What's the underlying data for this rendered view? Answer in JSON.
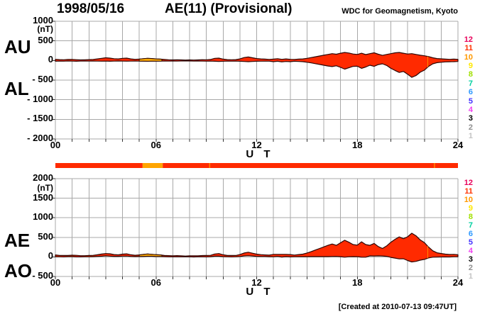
{
  "header": {
    "date": "1998/05/16",
    "title": "AE(11) (Provisional)",
    "credit": "WDC for Geomagnetism, Kyoto"
  },
  "footer": {
    "created": "[Created at 2010-07-13 09:47UT]"
  },
  "axis": {
    "unit_label": "(nT)",
    "ut_label": "U T",
    "x_tick_labels": [
      "00",
      "06",
      "12",
      "18",
      "24"
    ],
    "x_tick_hours": [
      0,
      6,
      12,
      18,
      24
    ]
  },
  "panels": {
    "top": {
      "left_labels": [
        "AU",
        "AL"
      ],
      "y_tick_labels": [
        "1000",
        "500",
        "0",
        "- 500",
        "- 1000",
        "- 1500",
        "- 2000"
      ],
      "y_tick_values": [
        1000,
        500,
        0,
        -500,
        -1000,
        -1500,
        -2000
      ]
    },
    "bottom": {
      "left_labels": [
        "AE",
        "AO"
      ],
      "y_tick_labels": [
        "2000",
        "1500",
        "1000",
        "500",
        "0",
        "- 500"
      ],
      "y_tick_values": [
        2000,
        1500,
        1000,
        500,
        0,
        -500
      ]
    }
  },
  "station_numbers": {
    "values": [
      "12",
      "11",
      "10",
      "9",
      "8",
      "7",
      "6",
      "5",
      "4",
      "3",
      "2",
      "1"
    ],
    "colors": [
      "#E8005A",
      "#FF3300",
      "#FF9900",
      "#FFE800",
      "#A0E000",
      "#00D0A0",
      "#2E9AFF",
      "#4433FF",
      "#F040F0",
      "#000000",
      "#909090",
      "#C4C4C4"
    ]
  },
  "chart_data": {
    "type": "area",
    "title": "AE(11) (Provisional)",
    "date": "1998/05/16",
    "xlabel": "U T",
    "unit": "nT",
    "x_start": 0,
    "x_end": 24,
    "x_step_hours": 0.25,
    "series": [
      {
        "name": "AU",
        "values": [
          30,
          22,
          18,
          25,
          28,
          20,
          15,
          18,
          22,
          28,
          40,
          55,
          70,
          60,
          45,
          40,
          55,
          60,
          40,
          30,
          35,
          45,
          55,
          50,
          40,
          35,
          25,
          18,
          15,
          18,
          15,
          12,
          15,
          12,
          15,
          20,
          18,
          25,
          55,
          60,
          35,
          22,
          18,
          22,
          40,
          75,
          90,
          70,
          50,
          40,
          35,
          28,
          35,
          45,
          30,
          40,
          30,
          28,
          35,
          40,
          55,
          75,
          95,
          115,
          135,
          155,
          175,
          160,
          185,
          205,
          190,
          165,
          155,
          185,
          150,
          175,
          195,
          160,
          130,
          155,
          175,
          195,
          205,
          185,
          165,
          175,
          155,
          135,
          120,
          100,
          70,
          50,
          42,
          35,
          30,
          35,
          30
        ]
      },
      {
        "name": "AL",
        "values": [
          -20,
          -15,
          -18,
          -12,
          -15,
          -20,
          -15,
          -12,
          -15,
          -12,
          -15,
          -18,
          -15,
          -20,
          -15,
          -12,
          -15,
          -18,
          -15,
          -12,
          -15,
          -18,
          -20,
          -15,
          -18,
          -15,
          -12,
          -15,
          -12,
          -15,
          -12,
          -10,
          -12,
          -15,
          -12,
          -15,
          -18,
          -15,
          -20,
          -25,
          -20,
          -15,
          -18,
          -15,
          -20,
          -25,
          -30,
          -25,
          -20,
          -18,
          -15,
          -18,
          -30,
          -20,
          -35,
          -25,
          -30,
          -20,
          -25,
          -30,
          -45,
          -60,
          -80,
          -100,
          -120,
          -140,
          -155,
          -135,
          -175,
          -220,
          -185,
          -150,
          -145,
          -200,
          -165,
          -120,
          -150,
          -105,
          -85,
          -125,
          -200,
          -255,
          -305,
          -280,
          -350,
          -430,
          -385,
          -300,
          -245,
          -150,
          -85,
          -55,
          -45,
          -35,
          -32,
          -30,
          -25
        ]
      },
      {
        "name": "AE",
        "values": [
          50,
          37,
          36,
          37,
          43,
          40,
          30,
          30,
          37,
          40,
          55,
          73,
          85,
          80,
          60,
          52,
          70,
          78,
          55,
          42,
          50,
          63,
          75,
          65,
          58,
          50,
          37,
          33,
          27,
          33,
          27,
          22,
          27,
          27,
          27,
          35,
          36,
          40,
          75,
          85,
          55,
          37,
          36,
          37,
          60,
          100,
          120,
          95,
          70,
          58,
          50,
          46,
          65,
          65,
          65,
          65,
          60,
          48,
          60,
          70,
          100,
          135,
          175,
          215,
          255,
          295,
          330,
          295,
          360,
          425,
          375,
          315,
          300,
          385,
          315,
          295,
          345,
          265,
          215,
          280,
          375,
          450,
          510,
          465,
          515,
          605,
          540,
          435,
          365,
          250,
          155,
          105,
          87,
          70,
          62,
          65,
          55
        ]
      },
      {
        "name": "AO",
        "values": [
          5,
          4,
          0,
          7,
          7,
          0,
          0,
          3,
          4,
          8,
          13,
          19,
          28,
          20,
          15,
          14,
          20,
          21,
          13,
          9,
          10,
          14,
          18,
          18,
          11,
          10,
          7,
          2,
          2,
          2,
          2,
          1,
          2,
          -2,
          2,
          3,
          0,
          5,
          18,
          18,
          8,
          4,
          0,
          4,
          10,
          25,
          30,
          23,
          15,
          11,
          10,
          5,
          3,
          13,
          -3,
          8,
          0,
          4,
          5,
          5,
          5,
          8,
          8,
          8,
          8,
          8,
          10,
          13,
          5,
          -8,
          3,
          8,
          5,
          -8,
          -8,
          28,
          23,
          28,
          23,
          15,
          -13,
          -30,
          -50,
          -48,
          -93,
          -128,
          -115,
          -83,
          -63,
          -25,
          -8,
          -3,
          -2,
          0,
          -1,
          3,
          3
        ]
      }
    ],
    "panels": [
      {
        "id": "top",
        "series": [
          "AU",
          "AL"
        ],
        "ylim": [
          -2000,
          1000
        ],
        "y_grid_step": 500,
        "x_grid_step": 1
      },
      {
        "id": "bottom",
        "series": [
          "AE",
          "AO"
        ],
        "ylim": [
          -500,
          2000
        ],
        "y_grid_step": 500,
        "x_grid_step": 1
      }
    ],
    "highlight_interval_hours": [
      5.0,
      6.35
    ],
    "gap_mark_hour": 22.2,
    "colors": {
      "fill": "#FF2A00",
      "outline": "#2B0500",
      "highlight_fill": "#FFAD00",
      "grid": "#A8A8A8",
      "tick": "#333333"
    },
    "availability_bar": {
      "segments": [
        {
          "from": 0,
          "to": 5.2,
          "color": "#FF2A00"
        },
        {
          "from": 5.2,
          "to": 6.4,
          "color": "#FFA500"
        },
        {
          "from": 6.4,
          "to": 24,
          "color": "#FF2A00"
        }
      ],
      "tick_marks_hours": [
        9.2,
        22.6
      ],
      "tick_color": "#FF8800"
    }
  }
}
